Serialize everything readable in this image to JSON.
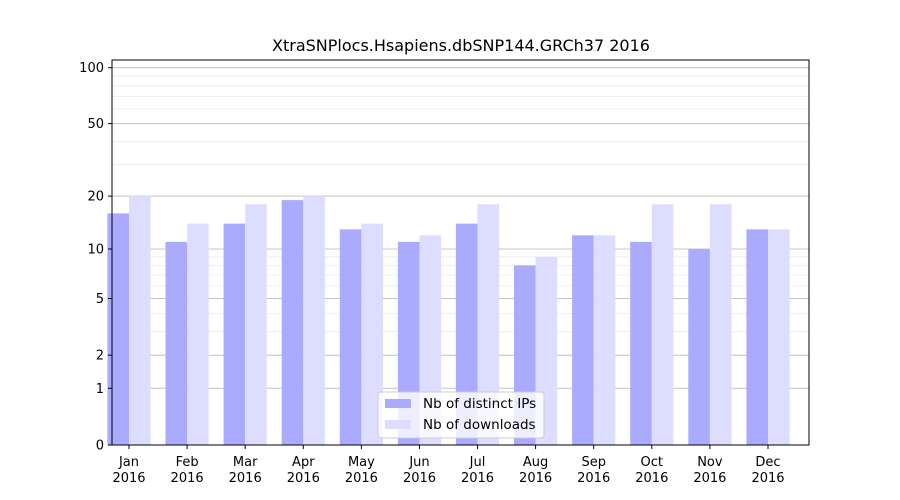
{
  "chart_data": {
    "type": "bar",
    "title": "XtraSNPlocs.Hsapiens.dbSNP144.GRCh37 2016",
    "xlabel": "",
    "ylabel": "",
    "yscale": "log1p",
    "ylim": [
      0,
      110
    ],
    "yticks": [
      0,
      1,
      2,
      5,
      10,
      20,
      50,
      100
    ],
    "grid": true,
    "legend_position": "bottom-center",
    "categories": [
      [
        "Jan",
        "2016"
      ],
      [
        "Feb",
        "2016"
      ],
      [
        "Mar",
        "2016"
      ],
      [
        "Apr",
        "2016"
      ],
      [
        "May",
        "2016"
      ],
      [
        "Jun",
        "2016"
      ],
      [
        "Jul",
        "2016"
      ],
      [
        "Aug",
        "2016"
      ],
      [
        "Sep",
        "2016"
      ],
      [
        "Oct",
        "2016"
      ],
      [
        "Nov",
        "2016"
      ],
      [
        "Dec",
        "2016"
      ]
    ],
    "series": [
      {
        "name": "Nb of distinct IPs",
        "color": "#aaaaff",
        "values": [
          16,
          11,
          14,
          19,
          13,
          11,
          14,
          8,
          12,
          11,
          10,
          13
        ]
      },
      {
        "name": "Nb of downloads",
        "color": "#ddddff",
        "values": [
          20,
          14,
          18,
          20,
          14,
          12,
          18,
          9,
          12,
          18,
          18,
          13
        ]
      }
    ]
  }
}
